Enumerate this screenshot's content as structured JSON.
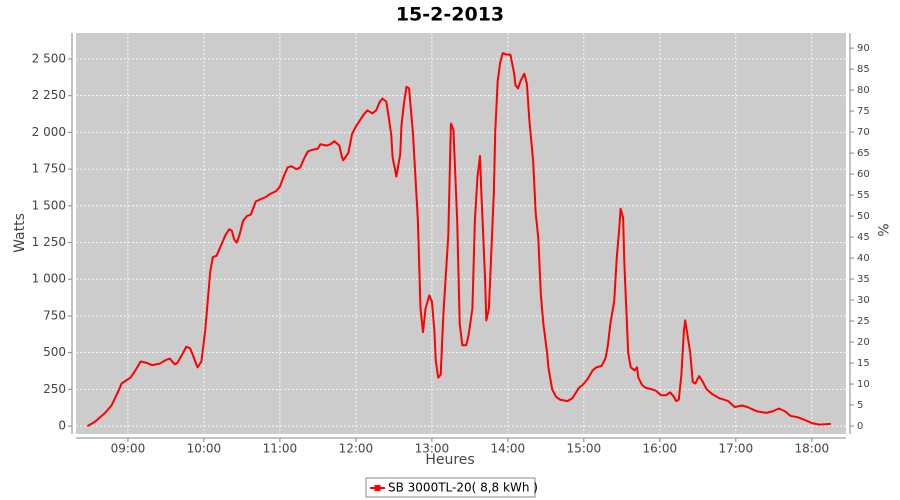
{
  "chart_data": {
    "type": "line",
    "title": "15-2-2013",
    "x_label": "Heures",
    "y_label": "Watts",
    "y2_label": "%",
    "grid": true,
    "legend": "bottom",
    "x": [
      "08:28",
      "08:34",
      "08:42",
      "08:47",
      "08:52",
      "08:55",
      "09:02",
      "09:06",
      "09:10",
      "09:15",
      "09:19",
      "09:25",
      "09:30",
      "09:33",
      "09:37",
      "09:39",
      "09:43",
      "09:46",
      "09:49",
      "09:51",
      "09:54",
      "09:55",
      "09:58",
      "10:01",
      "10:03",
      "10:05",
      "10:07",
      "10:10",
      "10:13",
      "10:17",
      "10:20",
      "10:22",
      "10:24",
      "10:26",
      "10:28",
      "10:31",
      "10:34",
      "10:37",
      "10:41",
      "10:46",
      "10:49",
      "10:52",
      "10:57",
      "11:00",
      "11:03",
      "11:06",
      "11:09",
      "11:13",
      "11:16",
      "11:19",
      "11:22",
      "11:25",
      "11:30",
      "11:32",
      "11:37",
      "11:40",
      "11:43",
      "11:47",
      "11:49",
      "11:50",
      "11:54",
      "11:57",
      "12:00",
      "12:03",
      "12:06",
      "12:09",
      "12:13",
      "12:16",
      "12:19",
      "12:21",
      "12:24",
      "12:26",
      "12:28",
      "12:29",
      "12:32",
      "12:35",
      "12:36",
      "12:38",
      "12:40",
      "12:42",
      "12:43",
      "12:45",
      "12:47",
      "12:49",
      "12:51",
      "12:53",
      "12:55",
      "12:58",
      "13:00",
      "13:02",
      "13:03",
      "13:05",
      "13:07",
      "13:09",
      "13:13",
      "13:15",
      "13:17",
      "13:20",
      "13:22",
      "13:24",
      "13:27",
      "13:29",
      "13:32",
      "13:34",
      "13:36",
      "13:38",
      "13:39",
      "13:42",
      "13:43",
      "13:45",
      "13:47",
      "13:49",
      "13:50",
      "13:52",
      "13:54",
      "13:56",
      "13:59",
      "14:02",
      "14:05",
      "14:06",
      "14:08",
      "14:10",
      "14:13",
      "14:15",
      "14:17",
      "14:20",
      "14:22",
      "14:24",
      "14:26",
      "14:28",
      "14:31",
      "14:32",
      "14:35",
      "14:38",
      "14:41",
      "14:47",
      "14:51",
      "14:54",
      "14:56",
      "14:59",
      "15:03",
      "15:07",
      "15:10",
      "15:14",
      "15:17",
      "15:19",
      "15:21",
      "15:24",
      "15:26",
      "15:28",
      "15:29",
      "15:31",
      "15:32",
      "15:35",
      "15:37",
      "15:40",
      "15:42",
      "15:43",
      "15:46",
      "15:49",
      "15:54",
      "15:57",
      "16:01",
      "16:05",
      "16:08",
      "16:11",
      "16:13",
      "16:15",
      "16:17",
      "16:19",
      "16:20",
      "16:24",
      "16:26",
      "16:28",
      "16:31",
      "16:34",
      "16:37",
      "16:41",
      "16:47",
      "16:54",
      "16:59",
      "17:05",
      "17:09",
      "17:17",
      "17:24",
      "17:29",
      "17:34",
      "17:39",
      "17:43",
      "17:49",
      "17:55",
      "18:00",
      "18:06",
      "18:15"
    ],
    "series": [
      {
        "name": "SB 3000TL-20( 8,8 kWh )",
        "color": "#ff0000",
        "values": [
          0,
          30,
          90,
          140,
          230,
          290,
          330,
          380,
          440,
          430,
          415,
          425,
          450,
          460,
          420,
          430,
          490,
          540,
          530,
          490,
          420,
          400,
          440,
          650,
          850,
          1050,
          1150,
          1160,
          1220,
          1300,
          1340,
          1330,
          1270,
          1250,
          1300,
          1400,
          1430,
          1440,
          1530,
          1550,
          1560,
          1580,
          1600,
          1630,
          1700,
          1760,
          1770,
          1750,
          1760,
          1820,
          1870,
          1880,
          1890,
          1920,
          1910,
          1920,
          1940,
          1910,
          1830,
          1810,
          1860,
          1990,
          2040,
          2080,
          2120,
          2150,
          2130,
          2150,
          2210,
          2230,
          2210,
          2100,
          1980,
          1830,
          1700,
          1850,
          2050,
          2200,
          2310,
          2300,
          2200,
          2000,
          1700,
          1400,
          800,
          640,
          800,
          890,
          850,
          650,
          450,
          330,
          350,
          750,
          1300,
          2060,
          2020,
          1400,
          700,
          550,
          550,
          620,
          800,
          1400,
          1700,
          1840,
          1600,
          1000,
          720,
          800,
          1200,
          1600,
          2000,
          2350,
          2480,
          2540,
          2530,
          2530,
          2400,
          2320,
          2300,
          2350,
          2400,
          2330,
          2080,
          1800,
          1450,
          1280,
          900,
          700,
          500,
          400,
          250,
          200,
          180,
          170,
          190,
          230,
          260,
          280,
          320,
          380,
          400,
          410,
          460,
          550,
          700,
          850,
          1150,
          1350,
          1480,
          1420,
          1100,
          500,
          400,
          380,
          400,
          330,
          280,
          260,
          250,
          240,
          210,
          210,
          230,
          200,
          170,
          180,
          350,
          650,
          720,
          500,
          300,
          290,
          340,
          300,
          250,
          220,
          190,
          170,
          130,
          140,
          130,
          100,
          90,
          100,
          120,
          100,
          70,
          60,
          40,
          20,
          10,
          15
        ]
      }
    ],
    "xlim": [
      "08:19",
      "18:27"
    ],
    "xticks": [
      "09:00",
      "10:00",
      "11:00",
      "12:00",
      "13:00",
      "14:00",
      "15:00",
      "16:00",
      "17:00",
      "18:00"
    ],
    "ylim": [
      -54,
      2677
    ],
    "yticks": [
      0,
      250,
      500,
      750,
      {
        "value": 1000,
        "label": "1 000"
      },
      {
        "value": 1250,
        "label": "1 250"
      },
      {
        "value": 1500,
        "label": "1 500"
      },
      {
        "value": 1750,
        "label": "1 750"
      },
      {
        "value": 2000,
        "label": "2 000"
      },
      {
        "value": 2250,
        "label": "2 250"
      },
      {
        "value": 2500,
        "label": "2 500"
      }
    ],
    "y2lim": [
      -1.9,
      93.6
    ],
    "y2ticks": [
      0,
      5,
      10,
      15,
      20,
      25,
      30,
      35,
      40,
      45,
      50,
      55,
      60,
      65,
      70,
      75,
      80,
      85,
      90
    ]
  }
}
